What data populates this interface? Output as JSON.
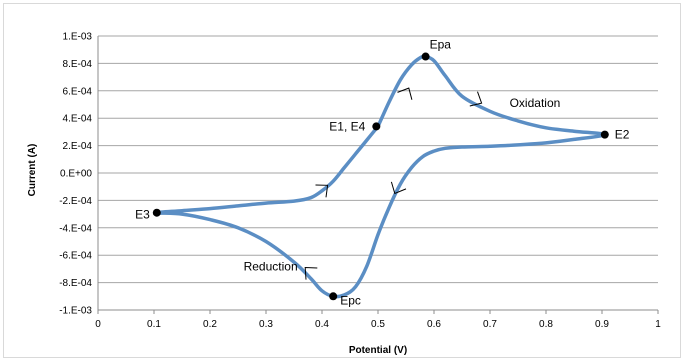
{
  "chart_data": {
    "type": "line",
    "title": "",
    "xlabel": "Potential (V)",
    "ylabel": "Current (A)",
    "xlim": [
      0,
      1
    ],
    "ylim": [
      -0.001,
      0.001
    ],
    "x_ticks": [
      "0",
      "0.1",
      "0.2",
      "0.3",
      "0.4",
      "0.5",
      "0.6",
      "0.7",
      "0.8",
      "0.9",
      "1"
    ],
    "y_ticks": [
      "1.E-03",
      "8.E-04",
      "6.E-04",
      "4.E-04",
      "2.E-04",
      "0.E+00",
      "-2.E-04",
      "-4.E-04",
      "-6.E-04",
      "-8.E-04",
      "-1.E-03"
    ],
    "grid": "horizontal",
    "legend": "none",
    "series_color": "#5b8ec4",
    "series": [
      {
        "values": [
          [
            0.5,
            0.00034
          ],
          [
            0.52,
            0.00052
          ],
          [
            0.54,
            0.00068
          ],
          [
            0.56,
            0.00079
          ],
          [
            0.575,
            0.00084
          ],
          [
            0.585,
            0.00085
          ],
          [
            0.6,
            0.00082
          ],
          [
            0.62,
            0.00071
          ],
          [
            0.65,
            0.00056
          ],
          [
            0.7,
            0.00045
          ],
          [
            0.75,
            0.00038
          ],
          [
            0.8,
            0.00033
          ],
          [
            0.85,
            0.000305
          ],
          [
            0.905,
            0.00028
          ],
          [
            0.85,
            0.000245
          ],
          [
            0.8,
            0.00022
          ],
          [
            0.75,
            0.000205
          ],
          [
            0.7,
            0.000195
          ],
          [
            0.65,
            0.00019
          ],
          [
            0.62,
            0.00018
          ],
          [
            0.6,
            0.00016
          ],
          [
            0.58,
            0.00012
          ],
          [
            0.56,
            4e-05
          ],
          [
            0.54,
            -8e-05
          ],
          [
            0.52,
            -0.00025
          ],
          [
            0.5,
            -0.00045
          ],
          [
            0.48,
            -0.00068
          ],
          [
            0.46,
            -0.00083
          ],
          [
            0.44,
            -0.00089
          ],
          [
            0.42,
            -0.0009
          ],
          [
            0.4,
            -0.00086
          ],
          [
            0.38,
            -0.00077
          ],
          [
            0.35,
            -0.00065
          ],
          [
            0.3,
            -0.0005
          ],
          [
            0.25,
            -0.0004
          ],
          [
            0.2,
            -0.00034
          ],
          [
            0.15,
            -0.0003
          ],
          [
            0.105,
            -0.00029
          ],
          [
            0.15,
            -0.000275
          ],
          [
            0.2,
            -0.00026
          ],
          [
            0.25,
            -0.00024
          ],
          [
            0.3,
            -0.00022
          ],
          [
            0.35,
            -0.000205
          ],
          [
            0.38,
            -0.00018
          ],
          [
            0.4,
            -0.00013
          ],
          [
            0.42,
            -6e-05
          ],
          [
            0.44,
            4e-05
          ],
          [
            0.46,
            0.00014
          ],
          [
            0.48,
            0.00024
          ],
          [
            0.5,
            0.00034
          ]
        ]
      }
    ],
    "points": [
      {
        "label": "Epa",
        "x": 0.585,
        "y": 0.00085
      },
      {
        "label": "E1, E4",
        "x": 0.497,
        "y": 0.00034
      },
      {
        "label": "E2",
        "x": 0.905,
        "y": 0.00028
      },
      {
        "label": "E3",
        "x": 0.105,
        "y": -0.00029
      },
      {
        "label": "Epc",
        "x": 0.42,
        "y": -0.0009
      }
    ],
    "annotations": [
      {
        "text": "Oxidation",
        "x": 0.735,
        "y": 0.00048
      },
      {
        "text": "Reduction",
        "x": 0.26,
        "y": -0.00071
      }
    ],
    "direction_arrows": [
      {
        "x": 0.555,
        "y": 0.00062
      },
      {
        "x": 0.685,
        "y": 0.00051
      },
      {
        "x": 0.53,
        "y": -0.00015
      },
      {
        "x": 0.37,
        "y": -0.00069
      },
      {
        "x": 0.41,
        "y": -9e-05
      }
    ]
  }
}
